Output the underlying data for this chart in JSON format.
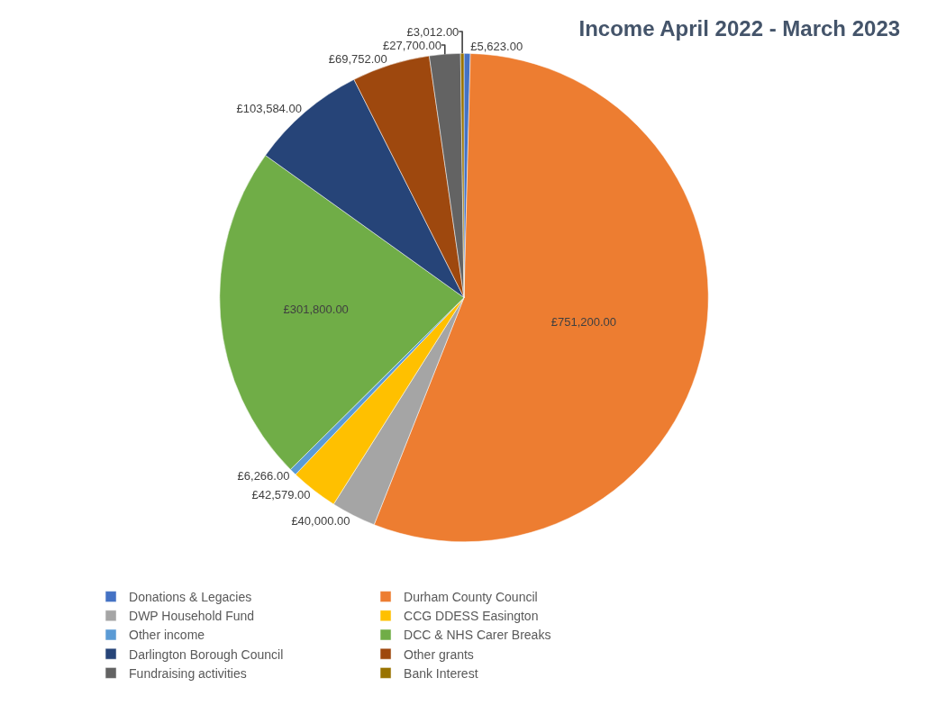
{
  "chart_data": {
    "type": "pie",
    "title": "Income April 2022 - March 2023",
    "categories": [
      "Donations & Legacies",
      "Durham County Council",
      "DWP Household Fund",
      "CCG DDESS Easington",
      "Other income",
      "DCC & NHS Carer Breaks",
      "Darlington Borough Council",
      "Other grants",
      "Fundraising activities",
      "Bank Interest"
    ],
    "values": [
      5623,
      751200,
      40000,
      42579,
      6266,
      301800,
      103584,
      69752,
      27700,
      3012
    ],
    "value_labels": [
      "£5,623.00",
      "£751,200.00",
      "£40,000.00",
      "£42,579.00",
      "£6,266.00",
      "£301,800.00",
      "£103,584.00",
      "£69,752.00",
      "£27,700.00",
      "£3,012.00"
    ],
    "colors": [
      "#4472c4",
      "#ed7d31",
      "#a5a5a5",
      "#ffc000",
      "#5b9bd5",
      "#70ad47",
      "#264478",
      "#9e480e",
      "#636363",
      "#997300"
    ],
    "legend": "bottom"
  }
}
